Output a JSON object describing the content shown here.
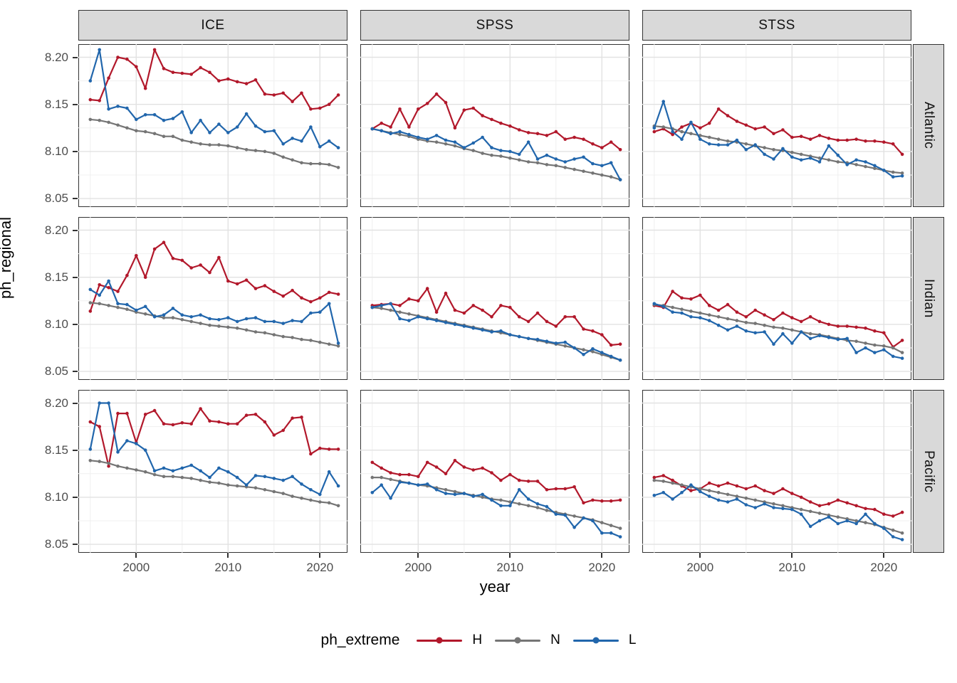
{
  "figure": {
    "y_axis_title": "ph_regional",
    "x_axis_title": "year"
  },
  "legend": {
    "title": "ph_extreme",
    "entries": [
      {
        "label": "H",
        "color": "#B2182B"
      },
      {
        "label": "N",
        "color": "#757575"
      },
      {
        "label": "L",
        "color": "#2166AC"
      }
    ]
  },
  "chart_data": {
    "type": "line",
    "title": "",
    "xlabel": "year",
    "ylabel": "ph_regional",
    "facet_cols": [
      "ICE",
      "SPSS",
      "STSS"
    ],
    "facet_rows": [
      "Atlantic",
      "Indian",
      "Pacific"
    ],
    "x_ticks": [
      2000,
      2010,
      2020
    ],
    "y_ticks": [
      8.05,
      8.1,
      8.15,
      8.2
    ],
    "x_minor": [
      1995,
      2005,
      2015
    ],
    "y_minor": [
      8.075,
      8.125,
      8.175
    ],
    "xlim": [
      1993.7,
      2023.0
    ],
    "ylim": [
      8.041,
      8.214
    ],
    "grid": true,
    "legend_position": "bottom",
    "series_order": [
      "H",
      "N",
      "L"
    ],
    "colors": {
      "H": "#B2182B",
      "N": "#757575",
      "L": "#2166AC"
    },
    "years": [
      1995,
      1996,
      1997,
      1998,
      1999,
      2000,
      2001,
      2002,
      2003,
      2004,
      2005,
      2006,
      2007,
      2008,
      2009,
      2010,
      2011,
      2012,
      2013,
      2014,
      2015,
      2016,
      2017,
      2018,
      2019,
      2020,
      2021,
      2022
    ],
    "panels": [
      {
        "row": "Atlantic",
        "col": "ICE",
        "H": [
          8.155,
          8.154,
          8.178,
          8.2,
          8.198,
          8.19,
          8.167,
          8.208,
          8.188,
          8.184,
          8.183,
          8.182,
          8.189,
          8.184,
          8.175,
          8.177,
          8.174,
          8.172,
          8.176,
          8.161,
          8.16,
          8.162,
          8.153,
          8.162,
          8.145,
          8.146,
          8.15,
          8.16
        ],
        "N": [
          8.134,
          8.133,
          8.131,
          8.128,
          8.125,
          8.122,
          8.121,
          8.119,
          8.116,
          8.116,
          8.112,
          8.11,
          8.108,
          8.107,
          8.107,
          8.106,
          8.104,
          8.102,
          8.101,
          8.1,
          8.098,
          8.094,
          8.091,
          8.088,
          8.087,
          8.087,
          8.086,
          8.083
        ],
        "L": [
          8.175,
          8.208,
          8.145,
          8.148,
          8.146,
          8.134,
          8.139,
          8.139,
          8.133,
          8.135,
          8.142,
          8.12,
          8.133,
          8.12,
          8.129,
          8.12,
          8.126,
          8.14,
          8.127,
          8.121,
          8.122,
          8.108,
          8.114,
          8.111,
          8.126,
          8.105,
          8.111,
          8.104
        ]
      },
      {
        "row": "Atlantic",
        "col": "SPSS",
        "H": [
          8.124,
          8.13,
          8.126,
          8.145,
          8.126,
          8.145,
          8.151,
          8.161,
          8.152,
          8.125,
          8.144,
          8.146,
          8.138,
          8.134,
          8.13,
          8.127,
          8.123,
          8.12,
          8.119,
          8.117,
          8.121,
          8.113,
          8.115,
          8.113,
          8.108,
          8.104,
          8.11,
          8.102
        ],
        "N": [
          8.124,
          8.122,
          8.12,
          8.118,
          8.116,
          8.113,
          8.111,
          8.11,
          8.108,
          8.106,
          8.103,
          8.101,
          8.098,
          8.096,
          8.095,
          8.093,
          8.091,
          8.089,
          8.088,
          8.086,
          8.085,
          8.083,
          8.081,
          8.079,
          8.077,
          8.075,
          8.073,
          8.07
        ],
        "L": [
          8.124,
          8.122,
          8.119,
          8.121,
          8.118,
          8.115,
          8.113,
          8.117,
          8.112,
          8.11,
          8.104,
          8.109,
          8.115,
          8.104,
          8.101,
          8.1,
          8.097,
          8.11,
          8.092,
          8.096,
          8.092,
          8.089,
          8.092,
          8.094,
          8.087,
          8.085,
          8.088,
          8.07
        ]
      },
      {
        "row": "Atlantic",
        "col": "STSS",
        "H": [
          8.121,
          8.124,
          8.118,
          8.126,
          8.13,
          8.125,
          8.13,
          8.145,
          8.138,
          8.132,
          8.128,
          8.124,
          8.126,
          8.119,
          8.123,
          8.115,
          8.116,
          8.113,
          8.117,
          8.114,
          8.112,
          8.112,
          8.113,
          8.111,
          8.111,
          8.11,
          8.108,
          8.097
        ],
        "N": [
          8.127,
          8.126,
          8.124,
          8.121,
          8.119,
          8.117,
          8.115,
          8.113,
          8.111,
          8.11,
          8.108,
          8.106,
          8.104,
          8.102,
          8.101,
          8.099,
          8.097,
          8.095,
          8.093,
          8.091,
          8.089,
          8.088,
          8.086,
          8.084,
          8.082,
          8.08,
          8.078,
          8.077
        ],
        "L": [
          8.125,
          8.153,
          8.121,
          8.113,
          8.131,
          8.113,
          8.108,
          8.107,
          8.107,
          8.112,
          8.102,
          8.107,
          8.097,
          8.092,
          8.103,
          8.094,
          8.091,
          8.093,
          8.089,
          8.106,
          8.096,
          8.086,
          8.091,
          8.089,
          8.085,
          8.08,
          8.073,
          8.074
        ]
      },
      {
        "row": "Indian",
        "col": "ICE",
        "H": [
          8.114,
          8.142,
          8.139,
          8.135,
          8.152,
          8.173,
          8.15,
          8.18,
          8.187,
          8.17,
          8.168,
          8.16,
          8.163,
          8.155,
          8.171,
          8.146,
          8.143,
          8.147,
          8.138,
          8.141,
          8.135,
          8.13,
          8.136,
          8.128,
          8.124,
          8.128,
          8.134,
          8.132
        ],
        "N": [
          8.123,
          8.122,
          8.12,
          8.118,
          8.116,
          8.113,
          8.111,
          8.109,
          8.107,
          8.107,
          8.105,
          8.103,
          8.101,
          8.099,
          8.098,
          8.097,
          8.096,
          8.094,
          8.092,
          8.091,
          8.089,
          8.087,
          8.086,
          8.084,
          8.083,
          8.081,
          8.079,
          8.077
        ],
        "L": [
          8.137,
          8.131,
          8.146,
          8.122,
          8.121,
          8.115,
          8.119,
          8.108,
          8.11,
          8.117,
          8.11,
          8.108,
          8.11,
          8.106,
          8.105,
          8.107,
          8.103,
          8.106,
          8.107,
          8.103,
          8.103,
          8.101,
          8.104,
          8.103,
          8.112,
          8.113,
          8.122,
          8.08
        ]
      },
      {
        "row": "Indian",
        "col": "SPSS",
        "H": [
          8.12,
          8.121,
          8.122,
          8.12,
          8.127,
          8.125,
          8.138,
          8.113,
          8.133,
          8.115,
          8.112,
          8.12,
          8.115,
          8.108,
          8.12,
          8.118,
          8.108,
          8.103,
          8.112,
          8.103,
          8.098,
          8.108,
          8.108,
          8.095,
          8.093,
          8.089,
          8.078,
          8.079
        ],
        "N": [
          8.118,
          8.117,
          8.115,
          8.113,
          8.111,
          8.109,
          8.107,
          8.105,
          8.103,
          8.101,
          8.099,
          8.097,
          8.095,
          8.093,
          8.091,
          8.089,
          8.087,
          8.085,
          8.083,
          8.081,
          8.079,
          8.077,
          8.075,
          8.073,
          8.071,
          8.068,
          8.065,
          8.062
        ],
        "L": [
          8.118,
          8.12,
          8.122,
          8.106,
          8.104,
          8.108,
          8.106,
          8.104,
          8.102,
          8.1,
          8.098,
          8.096,
          8.094,
          8.092,
          8.093,
          8.089,
          8.087,
          8.085,
          8.084,
          8.082,
          8.08,
          8.081,
          8.075,
          8.068,
          8.074,
          8.07,
          8.066,
          8.062
        ]
      },
      {
        "row": "Indian",
        "col": "STSS",
        "H": [
          8.12,
          8.118,
          8.135,
          8.128,
          8.127,
          8.131,
          8.12,
          8.115,
          8.121,
          8.113,
          8.108,
          8.115,
          8.11,
          8.105,
          8.112,
          8.107,
          8.103,
          8.108,
          8.103,
          8.1,
          8.098,
          8.098,
          8.097,
          8.096,
          8.093,
          8.091,
          8.076,
          8.083
        ],
        "N": [
          8.121,
          8.12,
          8.118,
          8.116,
          8.114,
          8.112,
          8.11,
          8.108,
          8.106,
          8.104,
          8.102,
          8.101,
          8.099,
          8.097,
          8.096,
          8.094,
          8.092,
          8.09,
          8.089,
          8.087,
          8.085,
          8.083,
          8.082,
          8.08,
          8.078,
          8.077,
          8.075,
          8.07
        ],
        "L": [
          8.122,
          8.119,
          8.113,
          8.112,
          8.108,
          8.107,
          8.104,
          8.099,
          8.094,
          8.098,
          8.093,
          8.091,
          8.092,
          8.079,
          8.09,
          8.08,
          8.092,
          8.085,
          8.088,
          8.086,
          8.084,
          8.085,
          8.07,
          8.075,
          8.07,
          8.073,
          8.066,
          8.064
        ]
      },
      {
        "row": "Pacific",
        "col": "ICE",
        "H": [
          8.18,
          8.175,
          8.133,
          8.189,
          8.189,
          8.158,
          8.188,
          8.192,
          8.178,
          8.177,
          8.179,
          8.178,
          8.194,
          8.181,
          8.18,
          8.178,
          8.178,
          8.187,
          8.188,
          8.18,
          8.166,
          8.171,
          8.184,
          8.185,
          8.146,
          8.152,
          8.151,
          8.151
        ],
        "N": [
          8.139,
          8.138,
          8.136,
          8.133,
          8.131,
          8.129,
          8.127,
          8.124,
          8.122,
          8.122,
          8.121,
          8.12,
          8.118,
          8.116,
          8.115,
          8.113,
          8.112,
          8.111,
          8.11,
          8.108,
          8.106,
          8.104,
          8.101,
          8.099,
          8.097,
          8.095,
          8.094,
          8.091
        ],
        "L": [
          8.151,
          8.2,
          8.2,
          8.148,
          8.16,
          8.157,
          8.15,
          8.128,
          8.131,
          8.128,
          8.131,
          8.134,
          8.128,
          8.121,
          8.131,
          8.127,
          8.121,
          8.113,
          8.123,
          8.122,
          8.12,
          8.118,
          8.122,
          8.114,
          8.108,
          8.103,
          8.127,
          8.112
        ]
      },
      {
        "row": "Pacific",
        "col": "SPSS",
        "H": [
          8.137,
          8.131,
          8.126,
          8.124,
          8.124,
          8.122,
          8.137,
          8.132,
          8.125,
          8.139,
          8.132,
          8.129,
          8.131,
          8.126,
          8.118,
          8.124,
          8.118,
          8.117,
          8.117,
          8.108,
          8.109,
          8.109,
          8.111,
          8.094,
          8.097,
          8.096,
          8.096,
          8.097
        ],
        "N": [
          8.121,
          8.121,
          8.119,
          8.117,
          8.115,
          8.113,
          8.112,
          8.11,
          8.108,
          8.106,
          8.104,
          8.102,
          8.1,
          8.098,
          8.097,
          8.095,
          8.093,
          8.091,
          8.089,
          8.086,
          8.084,
          8.082,
          8.08,
          8.078,
          8.076,
          8.073,
          8.07,
          8.067
        ],
        "L": [
          8.105,
          8.113,
          8.099,
          8.116,
          8.115,
          8.113,
          8.114,
          8.108,
          8.104,
          8.103,
          8.104,
          8.101,
          8.103,
          8.097,
          8.091,
          8.091,
          8.108,
          8.098,
          8.093,
          8.09,
          8.082,
          8.081,
          8.068,
          8.078,
          8.075,
          8.062,
          8.062,
          8.058
        ]
      },
      {
        "row": "Pacific",
        "col": "STSS",
        "H": [
          8.121,
          8.123,
          8.118,
          8.112,
          8.107,
          8.109,
          8.115,
          8.112,
          8.115,
          8.112,
          8.109,
          8.112,
          8.107,
          8.104,
          8.109,
          8.104,
          8.1,
          8.095,
          8.091,
          8.093,
          8.097,
          8.094,
          8.091,
          8.088,
          8.087,
          8.082,
          8.08,
          8.084
        ],
        "N": [
          8.118,
          8.117,
          8.115,
          8.113,
          8.111,
          8.109,
          8.107,
          8.105,
          8.103,
          8.101,
          8.099,
          8.097,
          8.095,
          8.093,
          8.091,
          8.089,
          8.087,
          8.085,
          8.083,
          8.081,
          8.079,
          8.077,
          8.075,
          8.073,
          8.071,
          8.068,
          8.065,
          8.062
        ],
        "L": [
          8.102,
          8.105,
          8.098,
          8.105,
          8.113,
          8.106,
          8.101,
          8.097,
          8.095,
          8.098,
          8.092,
          8.089,
          8.093,
          8.089,
          8.088,
          8.087,
          8.082,
          8.069,
          8.075,
          8.079,
          8.072,
          8.075,
          8.072,
          8.082,
          8.072,
          8.067,
          8.058,
          8.055
        ]
      }
    ]
  }
}
